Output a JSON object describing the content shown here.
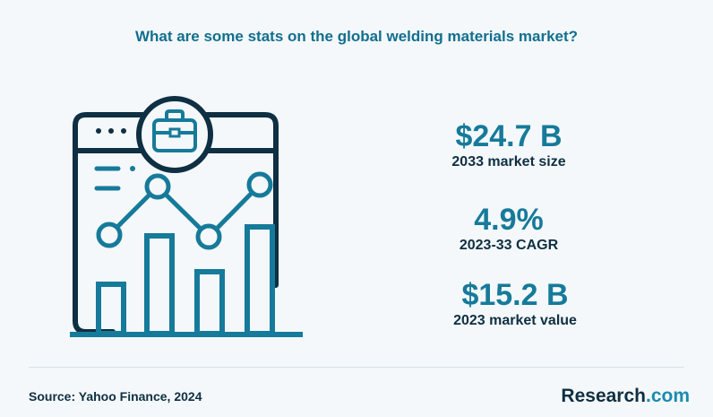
{
  "title": "What are some stats on the global welding materials market?",
  "stats": [
    {
      "value": "$24.7 B",
      "label": "2033 market size"
    },
    {
      "value": "4.9%",
      "label": "2023-33 CAGR"
    },
    {
      "value": "$15.2 B",
      "label": "2023 market value"
    }
  ],
  "footer": {
    "source": "Source: Yahoo Finance, 2024",
    "brand_name": "Research",
    "brand_suffix": ".com"
  },
  "colors": {
    "accent": "#167a9a",
    "dark": "#0f2f42",
    "background": "#f4f8fa"
  },
  "icons": [
    "browser-window-icon",
    "briefcase-icon",
    "bar-chart-icon",
    "trend-line-icon"
  ]
}
